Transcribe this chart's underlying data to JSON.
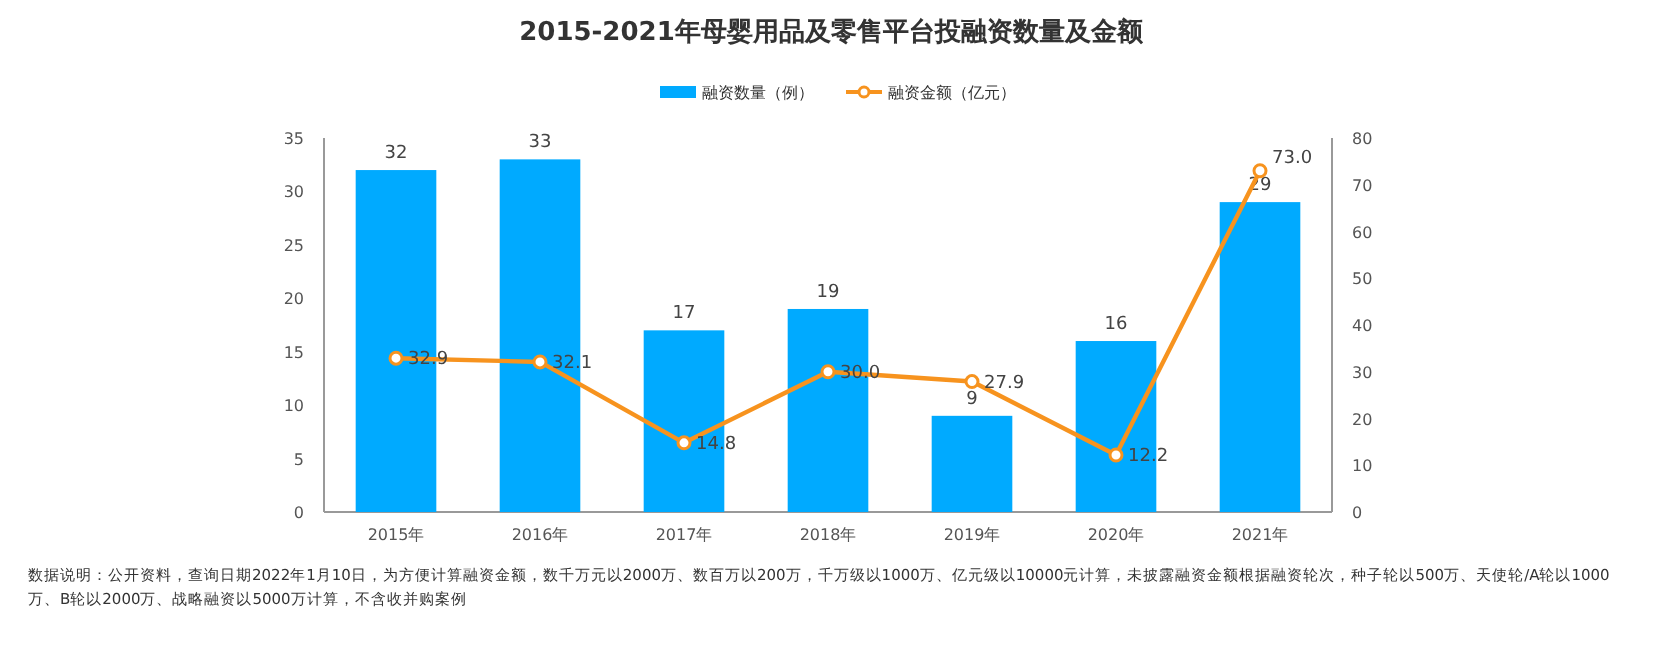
{
  "chart_data": {
    "type": "bar",
    "title": "2015-2021年母婴用品及零售平台投融资数量及金额",
    "categories": [
      "2015年",
      "2016年",
      "2017年",
      "2018年",
      "2019年",
      "2020年",
      "2021年"
    ],
    "series": [
      {
        "name": "融资数量（例）",
        "color": "#00aaff",
        "values": [
          32,
          33,
          17,
          19,
          9,
          16,
          29
        ],
        "value_labels": [
          "32",
          "33",
          "17",
          "19",
          "9",
          "16",
          "29"
        ]
      },
      {
        "name": "融资金额（亿元）",
        "type": "line",
        "axis": "y2",
        "marker": "circle",
        "color": "#f7931e",
        "values": [
          32.9,
          32.1,
          14.8,
          30.0,
          27.9,
          12.2,
          73.0
        ],
        "value_labels": [
          "32.9",
          "32.1",
          "14.8",
          "30.0",
          "27.9",
          "12.2",
          "73.0"
        ]
      }
    ],
    "ylim": [
      0,
      35
    ],
    "yticks": [
      0,
      5,
      10,
      15,
      20,
      25,
      30,
      35
    ],
    "y2lim": [
      0,
      80
    ],
    "y2ticks": [
      0,
      10,
      20,
      30,
      40,
      50,
      60,
      70,
      80
    ],
    "legend": "top",
    "annotations": [
      "数据说明：公开资料，查询日期2022年1月10日，为方便计算融资金额，数千万元以2000万、数百万以200万，千万级以1000万、亿元级以10000元计算，未披露融资金额根据融资轮次，种子轮以500万、天使轮/A轮以1000万、B轮以2000万、战略融资以5000万计算，不含收并购案例"
    ]
  }
}
